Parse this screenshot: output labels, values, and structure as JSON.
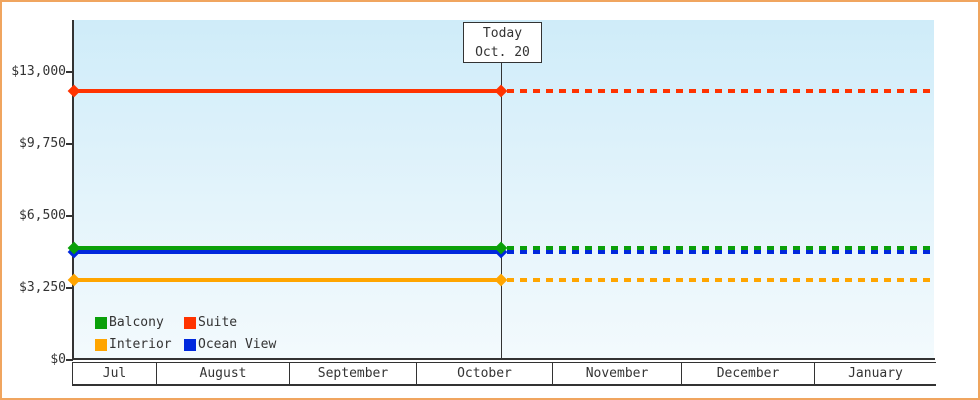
{
  "window": {
    "frame_border_color": "#f0a55f",
    "background_color": "#ffffff"
  },
  "chart_data": {
    "type": "line",
    "title": "",
    "description": "Cruise cabin price tracker: flat price lines per cabin category, solid history up to today marker, dotted projection afterwards",
    "x_axis": {
      "months": [
        "Jul",
        "August",
        "September",
        "October",
        "November",
        "December",
        "January"
      ]
    },
    "y_axis": {
      "ticks": [
        {
          "label": "$0",
          "value": 0
        },
        {
          "label": "$3,250",
          "value": 3250
        },
        {
          "label": "$6,500",
          "value": 6500
        },
        {
          "label": "$9,750",
          "value": 9750
        },
        {
          "label": "$13,000",
          "value": 13000
        }
      ],
      "range": [
        0,
        13000
      ],
      "grid": "off"
    },
    "today_marker": {
      "line1": "Today",
      "line2": "Oct. 20"
    },
    "series": [
      {
        "name": "Suite",
        "color": "#ff3300",
        "value": 12150,
        "line_style": "solid before today, dotted after"
      },
      {
        "name": "Interior",
        "color": "#ffa500",
        "value": 3600,
        "line_style": "solid before today, dotted after"
      },
      {
        "name": "Ocean View",
        "color": "#0028dd",
        "value": 4880,
        "line_style": "solid before today, dotted after"
      },
      {
        "name": "Balcony",
        "color": "#0aa00a",
        "value": 5050,
        "line_style": "solid before today, dotted after"
      }
    ],
    "legend": {
      "position": "bottom-left inside plot",
      "items": [
        "Balcony",
        "Suite",
        "Interior",
        "Ocean View"
      ]
    },
    "styles": {
      "axis_color": "#333333",
      "text_color": "#333333",
      "plot_gradient_top": "#cfecf9",
      "plot_gradient_bottom": "#f3fafd"
    }
  }
}
